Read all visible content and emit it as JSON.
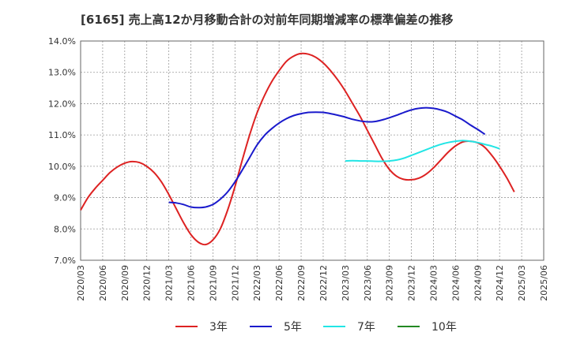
{
  "chart_data": {
    "type": "line",
    "title": "[6165]  売上高12か月移動合計の対前年同期増減率の標準偏差の推移",
    "y_ticks": [
      "14.0%",
      "13.0%",
      "12.0%",
      "11.0%",
      "10.0%",
      "9.0%",
      "8.0%",
      "7.0%"
    ],
    "ylim": [
      7.0,
      14.0
    ],
    "x_ticks": [
      "2020/03",
      "2020/06",
      "2020/09",
      "2020/12",
      "2021/03",
      "2021/06",
      "2021/09",
      "2021/12",
      "2022/03",
      "2022/06",
      "2022/09",
      "2022/12",
      "2023/03",
      "2023/06",
      "2023/09",
      "2023/12",
      "2024/03",
      "2024/06",
      "2024/09",
      "2024/12",
      "2025/03",
      "2025/06"
    ],
    "grid": true,
    "legend_position": "bottom",
    "series": [
      {
        "name": "3年",
        "color": "#dd2222",
        "start": "2020/03",
        "values": [
          8.6,
          9.0,
          9.3,
          9.55,
          9.8,
          9.98,
          10.1,
          10.15,
          10.12,
          10.0,
          9.8,
          9.5,
          9.1,
          8.65,
          8.2,
          7.82,
          7.58,
          7.5,
          7.65,
          8.0,
          8.6,
          9.35,
          10.2,
          11.0,
          11.7,
          12.25,
          12.7,
          13.05,
          13.35,
          13.52,
          13.6,
          13.58,
          13.48,
          13.3,
          13.05,
          12.75,
          12.4,
          12.0,
          11.6,
          11.15,
          10.7,
          10.25,
          9.9,
          9.68,
          9.58,
          9.57,
          9.62,
          9.75,
          9.95,
          10.2,
          10.45,
          10.65,
          10.78,
          10.8,
          10.75,
          10.6,
          10.33,
          10.0,
          9.62,
          9.18
        ]
      },
      {
        "name": "5年",
        "color": "#1a1acc",
        "start": "2021/03",
        "values": [
          8.85,
          8.83,
          8.78,
          8.7,
          8.68,
          8.7,
          8.78,
          8.95,
          9.18,
          9.5,
          9.88,
          10.28,
          10.68,
          10.98,
          11.2,
          11.38,
          11.52,
          11.62,
          11.68,
          11.72,
          11.73,
          11.72,
          11.68,
          11.63,
          11.57,
          11.5,
          11.45,
          11.42,
          11.43,
          11.48,
          11.55,
          11.63,
          11.72,
          11.8,
          11.85,
          11.87,
          11.85,
          11.8,
          11.72,
          11.6,
          11.48,
          11.32,
          11.18,
          11.02
        ]
      },
      {
        "name": "7年",
        "color": "#22e5e5",
        "start": "2023/03",
        "values": [
          10.17,
          10.18,
          10.17,
          10.17,
          10.16,
          10.16,
          10.17,
          10.2,
          10.26,
          10.35,
          10.44,
          10.53,
          10.62,
          10.7,
          10.76,
          10.8,
          10.82,
          10.8,
          10.76,
          10.7,
          10.64,
          10.56
        ]
      },
      {
        "name": "10年",
        "color": "#228822",
        "start": "2025/03",
        "values": []
      }
    ]
  }
}
